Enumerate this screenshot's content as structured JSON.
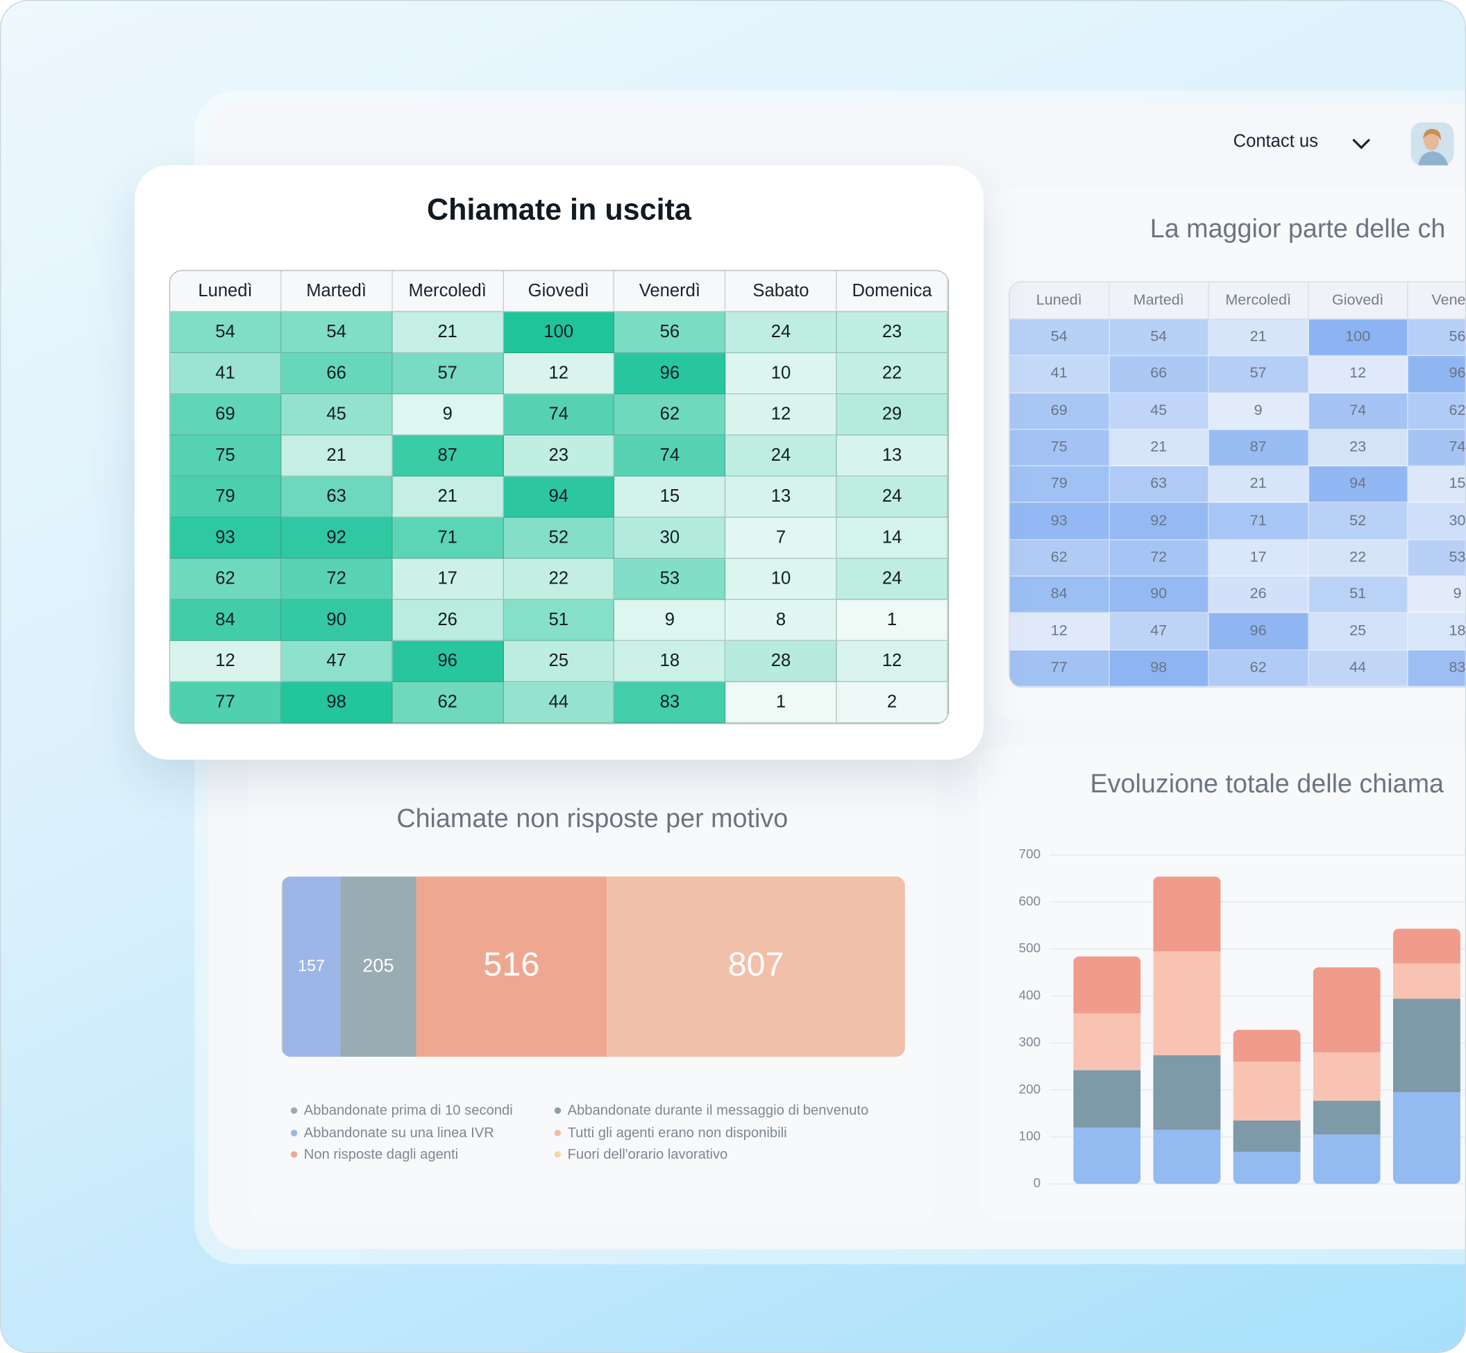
{
  "header": {
    "contact": "Contact us"
  },
  "chart_data": [
    {
      "type": "heatmap",
      "title": "Chiamate in uscita",
      "columns": [
        "Lunedì",
        "Martedì",
        "Mercoledì",
        "Giovedì",
        "Venerdì",
        "Sabato",
        "Domenica"
      ],
      "rows": [
        [
          54,
          54,
          21,
          100,
          56,
          24,
          23
        ],
        [
          41,
          66,
          57,
          12,
          96,
          10,
          22
        ],
        [
          69,
          45,
          9,
          74,
          62,
          12,
          29
        ],
        [
          75,
          21,
          87,
          23,
          74,
          24,
          13
        ],
        [
          79,
          63,
          21,
          94,
          15,
          13,
          24
        ],
        [
          93,
          92,
          71,
          52,
          30,
          7,
          14
        ],
        [
          62,
          72,
          17,
          22,
          53,
          10,
          24
        ],
        [
          84,
          90,
          26,
          51,
          9,
          8,
          1
        ],
        [
          12,
          47,
          96,
          25,
          18,
          28,
          12
        ],
        [
          77,
          98,
          62,
          44,
          83,
          1,
          2
        ]
      ],
      "color_min": "#effaf7",
      "color_max": "#1fc49b"
    },
    {
      "type": "heatmap",
      "title": "La maggior parte delle ch",
      "columns": [
        "Lunedì",
        "Martedì",
        "Mercoledì",
        "Giovedì",
        "Venerdì"
      ],
      "rows": [
        [
          54,
          54,
          21,
          100,
          56
        ],
        [
          41,
          66,
          57,
          12,
          96
        ],
        [
          69,
          45,
          9,
          74,
          62
        ],
        [
          75,
          21,
          87,
          23,
          74
        ],
        [
          79,
          63,
          21,
          94,
          15
        ],
        [
          93,
          92,
          71,
          52,
          30
        ],
        [
          62,
          72,
          17,
          22,
          53
        ],
        [
          84,
          90,
          26,
          51,
          9
        ],
        [
          12,
          47,
          96,
          25,
          18
        ],
        [
          77,
          98,
          62,
          44,
          83
        ]
      ],
      "color_min": "#e2ebfa",
      "color_max": "#8cb4f2"
    },
    {
      "type": "hbar",
      "title": "Chiamate non risposte per motivo",
      "series": [
        {
          "name": "Abbandonate su una linea IVR",
          "color": "#9db6e8",
          "values": [
            157
          ]
        },
        {
          "name": "Abbandonate prima di 10 secondi",
          "color": "#99abb3",
          "values": [
            205
          ]
        },
        {
          "name": "Non risposte dagli agenti",
          "color": "#eea892",
          "values": [
            516
          ]
        },
        {
          "name": "Tutti gli agenti erano non disponibili",
          "color": "#f2bfa8",
          "values": [
            807
          ]
        },
        {
          "name": "Abbandonate durante il messaggio di benvenuto",
          "color": "#8ea1a9",
          "values": [
            null
          ]
        },
        {
          "name": "Fuori dell'orario lavorativo",
          "color": "#f5d8a5",
          "values": [
            null
          ]
        }
      ]
    },
    {
      "type": "bar",
      "title": "Evoluzione totale delle chiama",
      "stacked": true,
      "ylim": [
        0,
        700
      ],
      "yticks": [
        0,
        100,
        200,
        300,
        400,
        500,
        600,
        700
      ],
      "grid": true,
      "series": [
        {
          "color": "#93baf1",
          "values": [
            120,
            115,
            68,
            105,
            195
          ]
        },
        {
          "color": "#7e99a7",
          "values": [
            122,
            159,
            67,
            72,
            199
          ]
        },
        {
          "color": "#f9c3b3",
          "values": [
            121,
            221,
            125,
            103,
            75
          ]
        },
        {
          "color": "#f09b8b",
          "values": [
            121,
            159,
            68,
            181,
            74
          ]
        }
      ]
    }
  ]
}
